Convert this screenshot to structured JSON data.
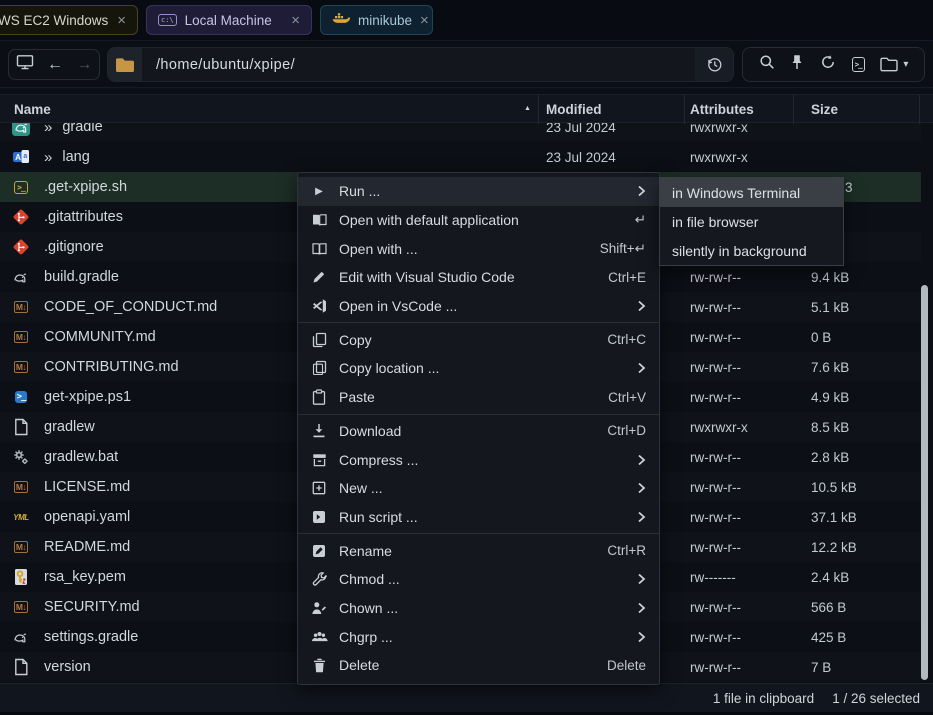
{
  "tabs": [
    {
      "label": "WS EC2 Windows",
      "close_glyph": "×"
    },
    {
      "label": "Local Machine",
      "icon": "cmd-icon",
      "close_glyph": "×"
    },
    {
      "label": "minikube",
      "icon": "docker-whale-icon",
      "close_glyph": "×"
    }
  ],
  "navbar": {
    "path": "/home/ubuntu/xpipe/",
    "back_glyph": "←",
    "forward_glyph": "→",
    "caret_glyph": "▾"
  },
  "table": {
    "columns": [
      "Name",
      "Modified",
      "Attributes",
      "Size"
    ],
    "sort_column": "Name",
    "sort_glyph": "▲",
    "dir_chevron_glyph": "»",
    "rows": [
      {
        "name": "gradle",
        "icon": "gradle-dir",
        "dir": true,
        "modified": "23 Jul 2024",
        "attributes": "rwxrwxr-x",
        "size": ""
      },
      {
        "name": "lang",
        "icon": "lang-dir",
        "dir": true,
        "modified": "23 Jul 2024",
        "attributes": "rwxrwxr-x",
        "size": ""
      },
      {
        "name": ".get-xpipe.sh",
        "icon": "shell",
        "selected": true,
        "modified": "",
        "attributes": "",
        "size": "3",
        "size_peek": true
      },
      {
        "name": ".gitattributes",
        "icon": "git",
        "modified": "",
        "attributes": "",
        "size": ""
      },
      {
        "name": ".gitignore",
        "icon": "git",
        "modified": "",
        "attributes": "",
        "size": ""
      },
      {
        "name": "build.gradle",
        "icon": "gradle-file",
        "modified": "",
        "attributes": "rw-rw-r--",
        "size": "9.4 kB"
      },
      {
        "name": "CODE_OF_CONDUCT.md",
        "icon": "markdown",
        "modified": "",
        "attributes": "rw-rw-r--",
        "size": "5.1 kB"
      },
      {
        "name": "COMMUNITY.md",
        "icon": "markdown",
        "modified": "",
        "attributes": "rw-rw-r--",
        "size": "0 B"
      },
      {
        "name": "CONTRIBUTING.md",
        "icon": "markdown",
        "modified": "",
        "attributes": "rw-rw-r--",
        "size": "7.6 kB"
      },
      {
        "name": "get-xpipe.ps1",
        "icon": "powershell",
        "modified": "",
        "attributes": "rw-rw-r--",
        "size": "4.9 kB"
      },
      {
        "name": "gradlew",
        "icon": "file",
        "modified": "",
        "attributes": "rwxrwxr-x",
        "size": "8.5 kB"
      },
      {
        "name": "gradlew.bat",
        "icon": "gears",
        "modified": "",
        "attributes": "rw-rw-r--",
        "size": "2.8 kB"
      },
      {
        "name": "LICENSE.md",
        "icon": "markdown",
        "modified": "",
        "attributes": "rw-rw-r--",
        "size": "10.5 kB"
      },
      {
        "name": "openapi.yaml",
        "icon": "yaml",
        "modified": "",
        "attributes": "rw-rw-r--",
        "size": "37.1 kB"
      },
      {
        "name": "README.md",
        "icon": "markdown",
        "modified": "",
        "attributes": "rw-rw-r--",
        "size": "12.2 kB"
      },
      {
        "name": "rsa_key.pem",
        "icon": "key",
        "modified": "",
        "attributes": "rw-------",
        "size": "2.4 kB"
      },
      {
        "name": "SECURITY.md",
        "icon": "markdown",
        "modified": "",
        "attributes": "rw-rw-r--",
        "size": "566 B"
      },
      {
        "name": "settings.gradle",
        "icon": "gradle-file",
        "modified": "",
        "attributes": "rw-rw-r--",
        "size": "425 B"
      },
      {
        "name": "version",
        "icon": "file",
        "modified": "",
        "attributes": "rw-rw-r--",
        "size": "7 B"
      }
    ]
  },
  "context_menu": {
    "items": [
      {
        "icon": "play-icon",
        "label": "Run ...",
        "submenu": true,
        "highlighted": true
      },
      {
        "icon": "book-icon",
        "label": "Open with default application",
        "accel": "↵"
      },
      {
        "icon": "open-book-icon",
        "label": "Open with ...",
        "accel": "Shift+↵"
      },
      {
        "icon": "pencil-icon",
        "label": "Edit with Visual Studio Code",
        "accel": "Ctrl+E"
      },
      {
        "icon": "vscode-icon",
        "label": "Open in VsCode ...",
        "submenu": true
      },
      {
        "divider": true
      },
      {
        "icon": "copy-icon",
        "label": "Copy",
        "accel": "Ctrl+C"
      },
      {
        "icon": "copy-location-icon",
        "label": "Copy location ...",
        "submenu": true
      },
      {
        "icon": "paste-icon",
        "label": "Paste",
        "accel": "Ctrl+V"
      },
      {
        "divider": true
      },
      {
        "icon": "download-icon",
        "label": "Download",
        "accel": "Ctrl+D"
      },
      {
        "icon": "archive-icon",
        "label": "Compress ...",
        "submenu": true
      },
      {
        "icon": "new-icon",
        "label": "New ...",
        "submenu": true
      },
      {
        "icon": "run-script-icon",
        "label": "Run script ...",
        "submenu": true
      },
      {
        "divider": true
      },
      {
        "icon": "rename-icon",
        "label": "Rename",
        "accel": "Ctrl+R"
      },
      {
        "icon": "wrench-icon",
        "label": "Chmod ...",
        "submenu": true
      },
      {
        "icon": "user-edit-icon",
        "label": "Chown ...",
        "submenu": true
      },
      {
        "icon": "users-icon",
        "label": "Chgrp ...",
        "submenu": true
      },
      {
        "icon": "trash-icon",
        "label": "Delete",
        "accel": "Delete"
      }
    ]
  },
  "submenu": {
    "items": [
      {
        "label": "in Windows Terminal",
        "highlighted": true
      },
      {
        "label": "in file browser"
      },
      {
        "label": "silently in background"
      }
    ]
  },
  "status_bar": {
    "clipboard": "1 file in clipboard",
    "selection": "1 / 26 selected"
  },
  "colors": {
    "selected_row_bg": "#1c2e25",
    "menu_bg": "#14171d",
    "submenu_highlight_bg": "#3a3f46",
    "folder_accent": "#c79545",
    "tab_aws_border": "#474422",
    "tab_local_border": "#38335e",
    "tab_minikube_border": "#1d4658",
    "git_icon_red": "#d9452c",
    "shell_icon_yellow": "#d3b43a",
    "powershell_blue": "#2b79cc",
    "markdown_tan": "#a3713c",
    "yaml_yellow": "#d4b02e",
    "docker_whale_amber": "#d9a83c"
  }
}
